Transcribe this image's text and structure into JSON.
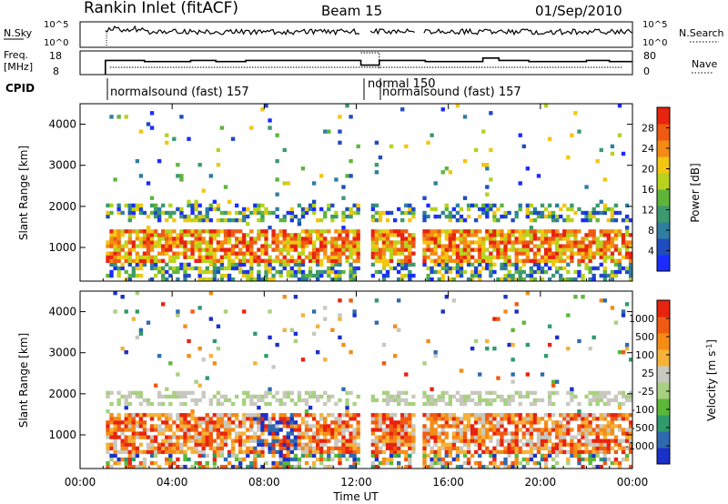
{
  "header": {
    "station": "Rankin Inlet (fitACF)",
    "beam": "Beam 15",
    "date": "01/Sep/2010"
  },
  "labels": {
    "nsky": "N.Sky",
    "nsearch": "N.Search",
    "freq_line1": "Freq.",
    "freq_line2": "[MHz]",
    "nave": "Nave",
    "cpid": "CPID",
    "nsky_tick_top": "10^5",
    "nsky_tick_bot": "10^0",
    "nsearch_tick_top": "10^5",
    "nsearch_tick_bot": "10^0",
    "freq_tick_top": "18",
    "freq_tick_bot": "8",
    "nave_tick_top": "80",
    "nave_tick_bot": "0",
    "cpid_1": "normalsound (fast) 157",
    "cpid_2": "normal 150",
    "cpid_3": "normalsound (fast) 157"
  },
  "colors": {
    "power": [
      "#1a2cff",
      "#1f4cbf",
      "#2f7ea0",
      "#3c9a6c",
      "#5fb53a",
      "#b7d21f",
      "#f3c613",
      "#f48b14",
      "#ee5a12",
      "#e8230f"
    ],
    "velocity": [
      "#e8230f",
      "#f05a12",
      "#f58c16",
      "#f5b23a",
      "#c8c8c0",
      "#a8d080",
      "#5cb838",
      "#2f9a6c",
      "#2f6ab0",
      "#1a30c8"
    ]
  },
  "chart_data": [
    {
      "type": "heatmap",
      "title": "",
      "ylabel": "Slant Range [km]",
      "xlabel": "",
      "ylim": [
        180,
        4500
      ],
      "y_ticks": [
        1000,
        2000,
        3000,
        4000
      ],
      "x_ticks": [
        "00:00",
        "04:00",
        "08:00",
        "12:00",
        "16:00",
        "20:00",
        "00:00"
      ],
      "colorbar": {
        "label": "Power [dB]",
        "ticks": [
          4,
          8,
          12,
          16,
          20,
          24,
          28
        ]
      },
      "echo_bands_km": [
        [
          600,
          1400
        ],
        [
          1600,
          2100
        ]
      ],
      "data_gap_hours": [
        [
          0,
          1.1
        ],
        [
          12.2,
          12.6
        ],
        [
          14.6,
          14.9
        ]
      ]
    },
    {
      "type": "heatmap",
      "title": "",
      "ylabel": "Slant Range [km]",
      "xlabel": "Time UT",
      "ylim": [
        180,
        4500
      ],
      "y_ticks": [
        1000,
        2000,
        3000,
        4000
      ],
      "x_ticks": [
        "00:00",
        "04:00",
        "08:00",
        "12:00",
        "16:00",
        "20:00",
        "00:00"
      ],
      "colorbar": {
        "label": "Velocity [m s^-1]",
        "ticks": [
          1000,
          500,
          100,
          25,
          -25,
          -100,
          -500,
          -1000
        ]
      },
      "echo_bands_km": [
        [
          500,
          1500
        ],
        [
          1700,
          2100
        ]
      ],
      "data_gap_hours": [
        [
          0,
          1.1
        ],
        [
          12.2,
          12.6
        ],
        [
          14.6,
          14.9
        ]
      ]
    },
    {
      "type": "line",
      "title": "",
      "series": [
        {
          "name": "Freq.",
          "x": [
            1.1,
            2.8,
            4.8,
            5.9,
            7.2,
            12.2,
            13.0,
            15.0,
            17.5,
            18.2,
            19.5,
            22.0,
            23.0,
            24.0
          ],
          "values": [
            14,
            13.5,
            14,
            13.5,
            14,
            12,
            14,
            13.5,
            15,
            14,
            13.5,
            14,
            13.5,
            13.5
          ]
        },
        {
          "name": "Nave",
          "x": [
            12.2,
            13.0
          ],
          "values": [
            80,
            80
          ]
        }
      ]
    }
  ]
}
